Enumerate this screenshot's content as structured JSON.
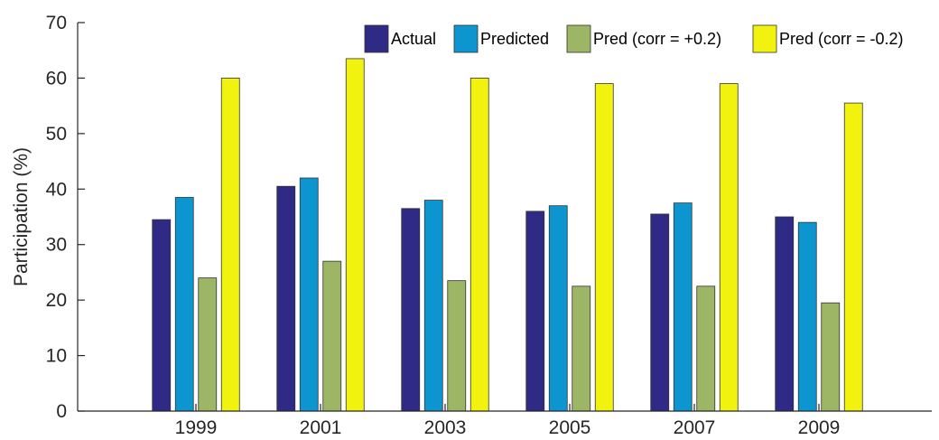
{
  "chart_data": {
    "type": "bar",
    "title": "",
    "xlabel": "",
    "ylabel": "Participation (%)",
    "ylim": [
      0,
      70
    ],
    "yticks": [
      0,
      10,
      20,
      30,
      40,
      50,
      60,
      70
    ],
    "categories": [
      "1999",
      "2001",
      "2003",
      "2005",
      "2007",
      "2009"
    ],
    "series": [
      {
        "name": "Actual",
        "color": "#2e2a85",
        "values": [
          34.5,
          40.5,
          36.5,
          36.0,
          35.5,
          35.0
        ]
      },
      {
        "name": "Predicted",
        "color": "#0d95cf",
        "values": [
          38.5,
          42.0,
          38.0,
          37.0,
          37.5,
          34.0
        ]
      },
      {
        "name": "Pred (corr = +0.2)",
        "color": "#9cb665",
        "values": [
          24.0,
          27.0,
          23.5,
          22.5,
          22.5,
          19.5
        ]
      },
      {
        "name": "Pred (corr = -0.2)",
        "color": "#f2f20f",
        "values": [
          60.0,
          63.5,
          60.0,
          59.0,
          59.0,
          55.5
        ]
      }
    ],
    "legend": {
      "position": "top-right",
      "orientation": "horizontal"
    },
    "grid": false
  }
}
